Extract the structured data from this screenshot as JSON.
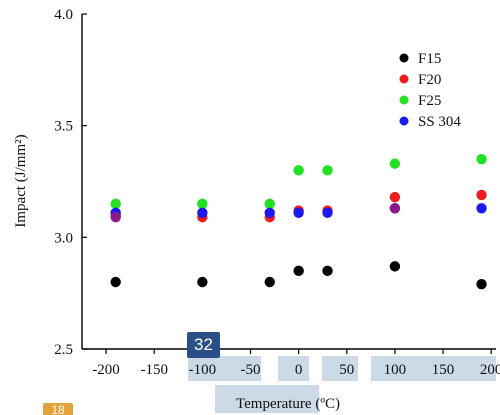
{
  "chart_data": {
    "type": "scatter",
    "xlabel": "Temperature (ºC)",
    "ylabel": "Impact (J/mm²)",
    "xlim": [
      -225,
      205
    ],
    "ylim": [
      2.5,
      4.0
    ],
    "x_ticks": [
      -200,
      -150,
      -100,
      -50,
      0,
      50,
      100,
      150,
      200
    ],
    "y_ticks": [
      "2.5",
      "3.0",
      "3.5",
      "4.0"
    ],
    "legend_position": "top-right",
    "series": [
      {
        "name": "F15",
        "color": "#000000",
        "x": [
          -190,
          -100,
          -30,
          0,
          30,
          100,
          190
        ],
        "y": [
          2.8,
          2.8,
          2.8,
          2.85,
          2.85,
          2.87,
          2.79
        ]
      },
      {
        "name": "F20",
        "color": "#ee1c1c",
        "x": [
          -190,
          -100,
          -30,
          0,
          30,
          100,
          190
        ],
        "y": [
          3.1,
          3.09,
          3.09,
          3.12,
          3.12,
          3.18,
          3.19
        ]
      },
      {
        "name": "F25",
        "color": "#22e022",
        "x": [
          -190,
          -100,
          -30,
          0,
          30,
          100,
          190
        ],
        "y": [
          3.15,
          3.15,
          3.15,
          3.3,
          3.3,
          3.33,
          3.35
        ]
      },
      {
        "name": "SS 304",
        "color": "#1a1aee",
        "x": [
          -190,
          -100,
          -30,
          0,
          30,
          100,
          190
        ],
        "y": [
          3.11,
          3.11,
          3.11,
          3.11,
          3.11,
          3.13,
          3.13
        ]
      }
    ],
    "extra_marks": {
      "color": "#8a1a8a",
      "x": [
        -190,
        100
      ],
      "y": [
        3.09,
        3.13
      ]
    }
  },
  "overlay": {
    "badge_label": "32",
    "badge2_label": "18"
  }
}
